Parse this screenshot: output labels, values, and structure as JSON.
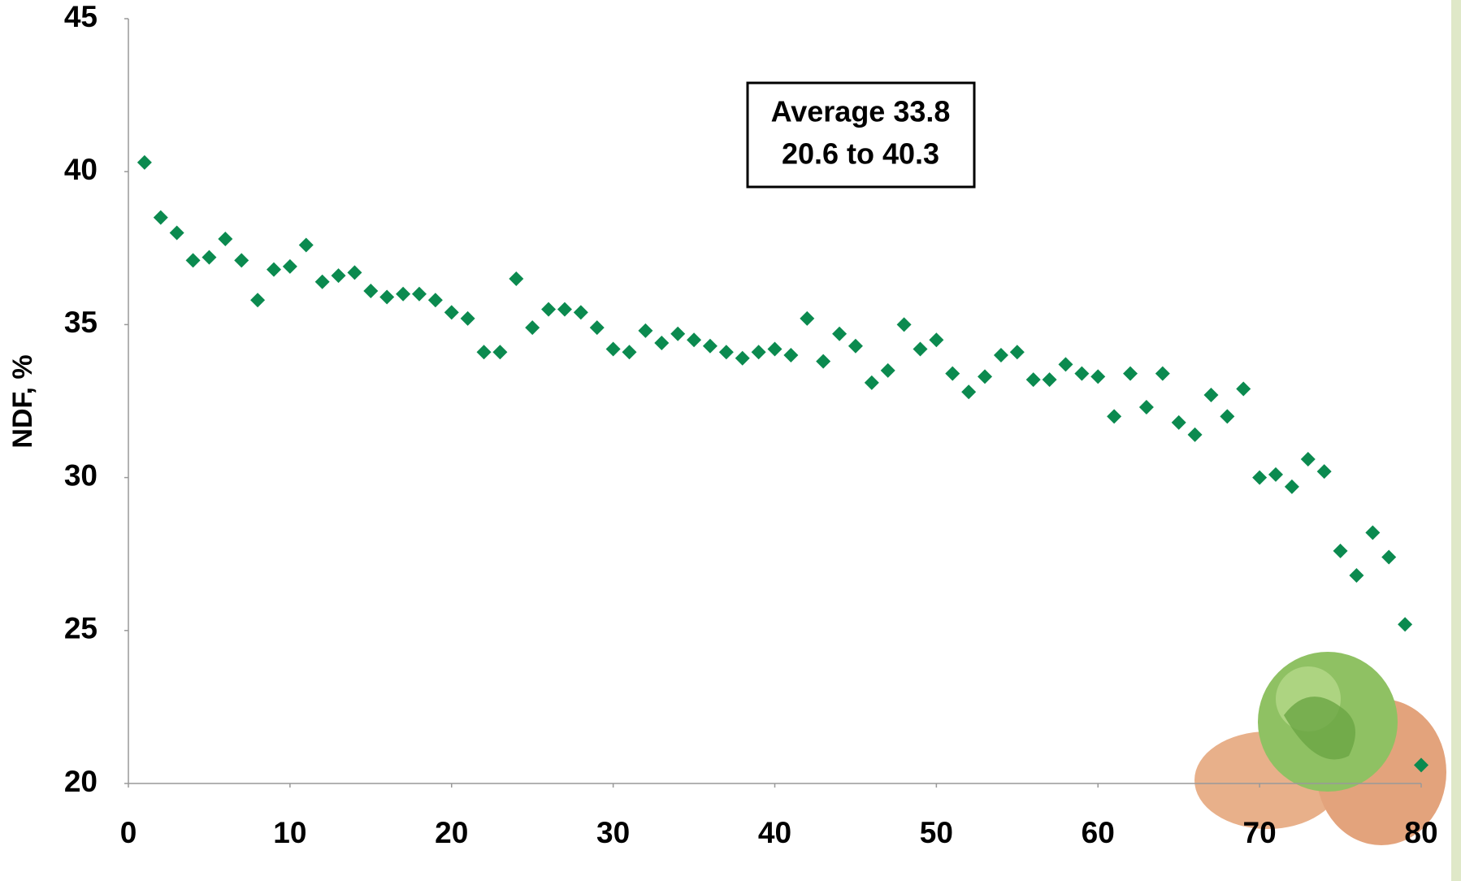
{
  "chart_data": {
    "type": "scatter",
    "y_label": "NDF, %",
    "annotation": [
      "Average 33.8",
      "20.6 to 40.3"
    ],
    "x": [
      1,
      2,
      3,
      4,
      5,
      6,
      7,
      8,
      9,
      10,
      11,
      12,
      13,
      14,
      15,
      16,
      17,
      18,
      19,
      20,
      21,
      22,
      23,
      24,
      25,
      26,
      27,
      28,
      29,
      30,
      31,
      32,
      33,
      34,
      35,
      36,
      37,
      38,
      39,
      40,
      41,
      42,
      43,
      44,
      45,
      46,
      47,
      48,
      49,
      50,
      51,
      52,
      53,
      54,
      55,
      56,
      57,
      58,
      59,
      60,
      61,
      62,
      63,
      64,
      65,
      66,
      67,
      68,
      69,
      70,
      71,
      72,
      73,
      74,
      75,
      76,
      77,
      78,
      79,
      80
    ],
    "values": [
      40.3,
      38.5,
      38.0,
      37.1,
      37.2,
      37.8,
      37.1,
      35.8,
      36.8,
      36.9,
      37.6,
      36.4,
      36.6,
      36.7,
      36.1,
      35.9,
      36.0,
      36.0,
      35.8,
      35.4,
      35.2,
      34.1,
      34.1,
      36.5,
      34.9,
      35.5,
      35.5,
      35.4,
      34.9,
      34.2,
      34.1,
      34.8,
      34.4,
      34.7,
      34.5,
      34.3,
      34.1,
      33.9,
      34.1,
      34.2,
      34.0,
      35.2,
      33.8,
      34.7,
      34.3,
      33.1,
      33.5,
      35.0,
      34.2,
      34.5,
      33.4,
      32.8,
      33.3,
      34.0,
      34.1,
      33.2,
      33.2,
      33.7,
      33.4,
      33.3,
      32.0,
      33.4,
      32.3,
      33.4,
      31.8,
      31.4,
      32.7,
      32.0,
      32.9,
      30.0,
      30.1,
      29.7,
      30.6,
      30.2,
      27.6,
      26.8,
      28.2,
      27.4,
      25.2,
      20.6
    ],
    "color": "#0b8a4f",
    "marker": "diamond",
    "xlim": [
      0,
      80
    ],
    "ylim": [
      20,
      45
    ],
    "xticks": [
      0,
      10,
      20,
      30,
      40,
      50,
      60,
      70,
      80
    ],
    "yticks": [
      20,
      25,
      30,
      35,
      40,
      45
    ]
  }
}
